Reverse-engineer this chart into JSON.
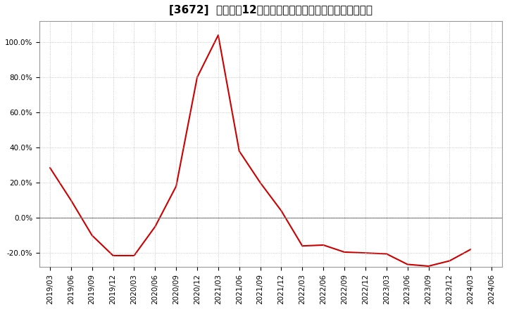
{
  "title": "[3672]  売上高の12か月移動合計の対前年同期増減率の推移",
  "line_color": "#cc0000",
  "background_color": "#ffffff",
  "plot_bg_color": "#ffffff",
  "grid_color": "#bbbbbb",
  "ylim": [
    -0.28,
    1.12
  ],
  "yticks": [
    -0.2,
    0.0,
    0.2,
    0.4,
    0.6,
    0.8,
    1.0
  ],
  "dates": [
    "2019/03",
    "2019/06",
    "2019/09",
    "2019/12",
    "2020/03",
    "2020/06",
    "2020/09",
    "2020/12",
    "2021/03",
    "2021/06",
    "2021/09",
    "2021/12",
    "2022/03",
    "2022/06",
    "2022/09",
    "2022/12",
    "2023/03",
    "2023/06",
    "2023/09",
    "2023/12",
    "2024/03",
    "2024/06"
  ],
  "values": [
    0.285,
    0.1,
    -0.1,
    -0.215,
    -0.215,
    -0.05,
    0.18,
    0.8,
    1.04,
    0.38,
    0.2,
    0.04,
    -0.16,
    -0.155,
    -0.195,
    -0.2,
    -0.205,
    -0.265,
    -0.275,
    -0.245,
    -0.18,
    null
  ],
  "title_fontsize": 11,
  "axis_fontsize": 7.5
}
